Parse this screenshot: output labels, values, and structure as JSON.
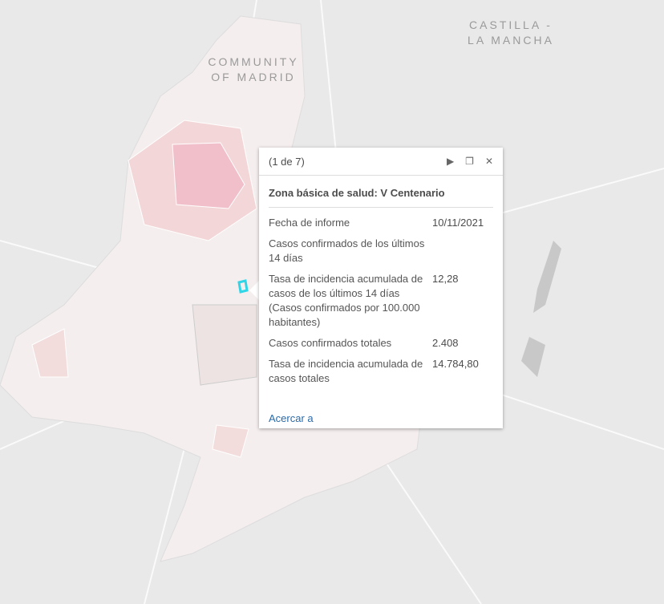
{
  "map": {
    "labels": [
      {
        "lines": [
          "CASTILLA -",
          "LA MANCHA"
        ]
      },
      {
        "lines": [
          "COMMUNITY",
          "OF MADRID"
        ]
      }
    ]
  },
  "popup": {
    "counter": "(1 de 7)",
    "title": "Zona básica de salud: V Centenario",
    "rows": [
      {
        "label": "Fecha de informe",
        "value": "10/11/2021"
      },
      {
        "label": "Casos confirmados de los últimos 14 días"
      },
      {
        "label": "Tasa de incidencia acumulada de casos de los últimos 14 días (Casos confirmados por 100.000 habitantes)",
        "value": "12,28"
      },
      {
        "label": "Casos confirmados totales",
        "value": "2.408"
      },
      {
        "label": "Tasa de incidencia acumulada de casos totales",
        "value": "14.784,80"
      }
    ],
    "action": "Acercar a"
  }
}
